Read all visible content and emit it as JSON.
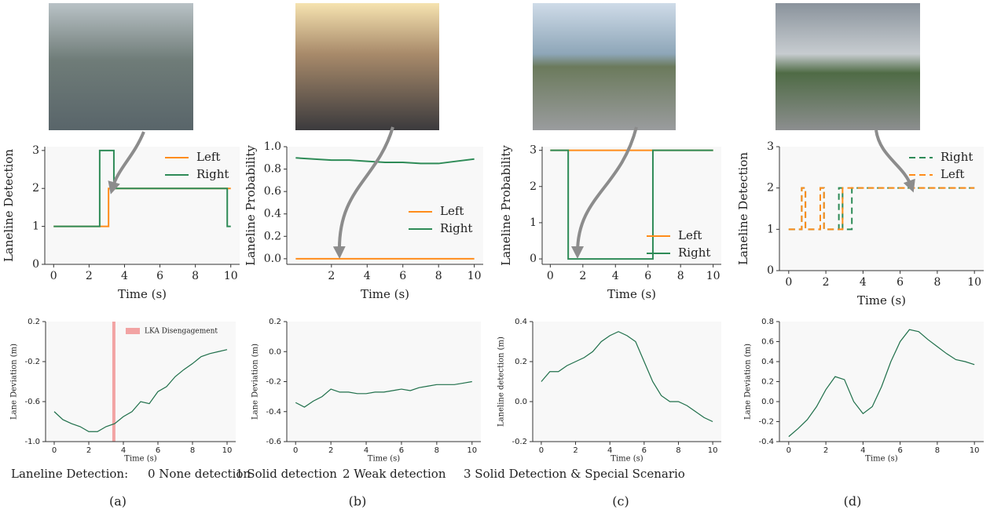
{
  "chart_data": [
    {
      "type": "line",
      "xlabel": "Time (s)",
      "ylabel": "Laneline Detection",
      "xlim": [
        -0.5,
        10.5
      ],
      "ylim": [
        0,
        3.1
      ],
      "xticks": [
        0,
        2,
        4,
        6,
        8,
        10
      ],
      "yticks": [
        0,
        1,
        2,
        3
      ],
      "legend": "upper right",
      "x": [
        0,
        2.6,
        2.6,
        3.1,
        3.1,
        3.4,
        3.4,
        9.8,
        9.8,
        10
      ],
      "series": [
        {
          "name": "Left",
          "color": "#ff8c1a",
          "values": [
            1,
            1,
            1,
            1,
            2,
            2,
            2,
            2,
            2,
            2
          ]
        },
        {
          "name": "Right",
          "color": "#2e8b57",
          "values": [
            1,
            1,
            3,
            3,
            3,
            3,
            2,
            2,
            1,
            1
          ]
        }
      ]
    },
    {
      "type": "line",
      "xlabel": "Time (s)",
      "ylabel": "Laneline Probability",
      "xlim": [
        -0.5,
        10.5
      ],
      "ylim": [
        -0.05,
        1.0
      ],
      "xticks": [
        2,
        4,
        6,
        8,
        10
      ],
      "yticks": [
        {
          "value": 0,
          "label": "0.0"
        },
        0.2,
        0.4,
        0.6,
        0.8,
        {
          "value": 1,
          "label": "1.0"
        }
      ],
      "legend": "center right",
      "x": [
        0,
        1,
        2,
        3,
        4,
        5,
        6,
        7,
        8,
        9,
        10
      ],
      "series": [
        {
          "name": "Left",
          "color": "#ff8c1a",
          "values": [
            0,
            0,
            0,
            0,
            0,
            0,
            0,
            0,
            0,
            0,
            0
          ]
        },
        {
          "name": "Right",
          "color": "#2e8b57",
          "values": [
            0.9,
            0.89,
            0.88,
            0.88,
            0.87,
            0.86,
            0.86,
            0.85,
            0.85,
            0.87,
            0.89
          ]
        }
      ]
    },
    {
      "type": "line",
      "xlabel": "Time (s)",
      "ylabel": "Laneline Probability",
      "xlim": [
        -0.5,
        10.5
      ],
      "ylim": [
        -0.15,
        3.1
      ],
      "xticks": [
        0,
        2,
        4,
        6,
        8,
        10
      ],
      "yticks": [
        0,
        1,
        2,
        3
      ],
      "legend": "lower right",
      "x": [
        0,
        1.1,
        1.1,
        6.3,
        6.3,
        10
      ],
      "series": [
        {
          "name": "Left",
          "color": "#ff8c1a",
          "values": [
            3,
            3,
            3,
            3,
            3,
            3
          ]
        },
        {
          "name": "Right",
          "color": "#2e8b57",
          "values": [
            3,
            3,
            0,
            0,
            3,
            3
          ]
        }
      ]
    },
    {
      "type": "line",
      "xlabel": "Time (s)",
      "ylabel": "Laneline Detection",
      "xlim": [
        -0.5,
        10.5
      ],
      "ylim": [
        0,
        3
      ],
      "xticks": [
        0,
        2,
        4,
        6,
        8,
        10
      ],
      "yticks": [
        0,
        1,
        2,
        3
      ],
      "legend": "upper right",
      "linestyle": "dashed",
      "x": [
        0,
        0.7,
        0.7,
        0.9,
        0.9,
        1.7,
        1.7,
        1.9,
        1.9,
        2.7,
        2.7,
        2.9,
        2.9,
        3.4,
        3.4,
        10
      ],
      "series": [
        {
          "name": "Right",
          "color": "#2e8b57",
          "values": [
            1,
            1,
            2,
            2,
            1,
            1,
            2,
            2,
            1,
            1,
            2,
            2,
            1,
            1,
            2,
            2
          ]
        },
        {
          "name": "Left",
          "color": "#ff8c1a",
          "values": [
            1,
            1,
            2,
            2,
            1,
            1,
            2,
            2,
            1,
            1,
            1,
            1,
            2,
            2,
            2,
            2
          ]
        }
      ]
    },
    {
      "type": "line",
      "xlabel": "Time (s)",
      "ylabel": "Lane Deviation (m)",
      "xlim": [
        -0.5,
        10.5
      ],
      "ylim": [
        -1,
        0.2
      ],
      "xticks": [
        0,
        2,
        4,
        6,
        8,
        10
      ],
      "yticks": [
        {
          "value": -1,
          "label": "-1.0"
        },
        -0.6,
        -0.2,
        0.2
      ],
      "color": "#1f6f4a",
      "x": [
        0,
        0.5,
        1,
        1.5,
        2,
        2.5,
        3,
        3.5,
        4,
        4.5,
        5,
        5.5,
        6,
        6.5,
        7,
        7.5,
        8,
        8.5,
        9,
        9.5,
        10
      ],
      "values": [
        -0.7,
        -0.78,
        -0.82,
        -0.85,
        -0.9,
        -0.9,
        -0.85,
        -0.82,
        -0.75,
        -0.7,
        -0.6,
        -0.62,
        -0.5,
        -0.45,
        -0.35,
        -0.28,
        -0.22,
        -0.15,
        -0.12,
        -0.1,
        -0.08
      ],
      "span": {
        "x": 3.45,
        "label": "LKA Disengagement",
        "color": "#f2a3a3"
      }
    },
    {
      "type": "line",
      "xlabel": "Time (s)",
      "ylabel": "Lane Deviation (m)",
      "xlim": [
        -0.5,
        10.5
      ],
      "ylim": [
        -0.6,
        0.2
      ],
      "xticks": [
        0,
        2,
        4,
        6,
        8,
        10
      ],
      "yticks": [
        -0.6,
        -0.4,
        -0.2,
        {
          "value": 0,
          "label": "0.0"
        },
        0.2
      ],
      "color": "#1f6f4a",
      "x": [
        0,
        0.5,
        1,
        1.5,
        2,
        2.5,
        3,
        3.5,
        4,
        4.5,
        5,
        5.5,
        6,
        6.5,
        7,
        7.5,
        8,
        8.5,
        9,
        9.5,
        10
      ],
      "values": [
        -0.34,
        -0.37,
        -0.33,
        -0.3,
        -0.25,
        -0.27,
        -0.27,
        -0.28,
        -0.28,
        -0.27,
        -0.27,
        -0.26,
        -0.25,
        -0.26,
        -0.24,
        -0.23,
        -0.22,
        -0.22,
        -0.22,
        -0.21,
        -0.2
      ]
    },
    {
      "type": "line",
      "xlabel": "Time (s)",
      "ylabel": "Laneline detection (m)",
      "xlim": [
        -0.5,
        10.5
      ],
      "ylim": [
        -0.2,
        0.4
      ],
      "xticks": [
        0,
        2,
        4,
        6,
        8,
        10
      ],
      "yticks": [
        -0.2,
        {
          "value": 0,
          "label": "0.0"
        },
        0.2,
        0.4
      ],
      "color": "#1f6f4a",
      "x": [
        0,
        0.5,
        1,
        1.5,
        2,
        2.5,
        3,
        3.5,
        4,
        4.5,
        5,
        5.5,
        6,
        6.5,
        7,
        7.5,
        8,
        8.5,
        9,
        9.5,
        10
      ],
      "values": [
        0.1,
        0.15,
        0.15,
        0.18,
        0.2,
        0.22,
        0.25,
        0.3,
        0.33,
        0.35,
        0.33,
        0.3,
        0.2,
        0.1,
        0.03,
        0.0,
        0.0,
        -0.02,
        -0.05,
        -0.08,
        -0.1
      ]
    },
    {
      "type": "line",
      "xlabel": "Time (s)",
      "ylabel": "Lane Deviation (m)",
      "xlim": [
        -0.5,
        10.5
      ],
      "ylim": [
        -0.4,
        0.8
      ],
      "xticks": [
        0,
        2,
        4,
        6,
        8,
        10
      ],
      "yticks": [
        -0.4,
        -0.2,
        {
          "value": 0,
          "label": "0.0"
        },
        0.2,
        0.4,
        0.6,
        0.8
      ],
      "color": "#1f6f4a",
      "x": [
        0,
        0.5,
        1,
        1.5,
        2,
        2.5,
        3,
        3.5,
        4,
        4.5,
        5,
        5.5,
        6,
        6.5,
        7,
        7.5,
        8,
        8.5,
        9,
        9.5,
        10
      ],
      "values": [
        -0.35,
        -0.27,
        -0.18,
        -0.05,
        0.12,
        0.25,
        0.22,
        0.0,
        -0.12,
        -0.05,
        0.15,
        0.4,
        0.6,
        0.72,
        0.7,
        0.62,
        0.55,
        0.48,
        0.42,
        0.4,
        0.37
      ]
    }
  ],
  "note": {
    "title": "Laneline Detection:",
    "items": [
      "0  None detection",
      "1  Solid detection",
      "2  Weak detection",
      "3  Solid Detection & Special Scenario"
    ]
  },
  "captions": [
    "(a)",
    "(b)",
    "(c)",
    "(d)"
  ]
}
